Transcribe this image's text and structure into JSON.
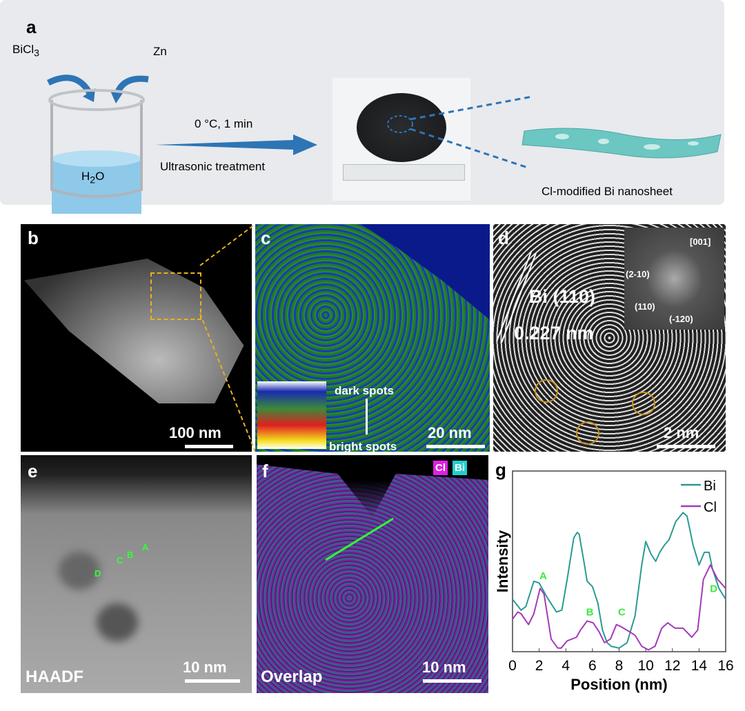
{
  "panel_a": {
    "label": "a",
    "reagent1": "BiCl",
    "reagent1_sub": "3",
    "reagent2": "Zn",
    "solvent": "H",
    "solvent_sub": "2",
    "solvent_tail": "O",
    "condition": "0 °C, 1 min",
    "process": "Ultrasonic treatment",
    "product": "Cl-modified Bi nanosheet"
  },
  "panel_b": {
    "label": "b",
    "scale": "100 nm"
  },
  "panel_c": {
    "label": "c",
    "scale": "20 nm",
    "legend_top": "dark spots",
    "legend_bottom": "bright spots"
  },
  "panel_d": {
    "label": "d",
    "plane": "Bi (110)",
    "spacing": "0.227 nm",
    "scale": "2 nm",
    "zone_axis": "[001]",
    "spots": [
      "(2-10)",
      "(110)",
      "(-120)"
    ]
  },
  "panel_e": {
    "label": "e",
    "mode": "HAADF",
    "scale": "10 nm",
    "points": [
      "A",
      "B",
      "C",
      "D"
    ]
  },
  "panel_f": {
    "label": "f",
    "mode": "Overlap",
    "scale": "10 nm",
    "legend": [
      "Cl",
      "Bi"
    ]
  },
  "chart_data": {
    "label": "g",
    "type": "line",
    "xlabel": "Position (nm)",
    "ylabel": "Intensity",
    "xlim": [
      0,
      16
    ],
    "ylim": [
      0,
      100
    ],
    "xticks": [
      0,
      2,
      4,
      6,
      8,
      10,
      12,
      14,
      16
    ],
    "legend_position": "top-right",
    "series": [
      {
        "name": "Bi",
        "color": "#2a9a94",
        "points": [
          [
            0,
            29
          ],
          [
            0.64,
            23
          ],
          [
            1,
            25
          ],
          [
            1.6,
            39
          ],
          [
            2,
            38
          ],
          [
            2.6,
            30
          ],
          [
            3.3,
            22
          ],
          [
            3.7,
            23
          ],
          [
            4.1,
            40
          ],
          [
            4.6,
            63
          ],
          [
            4.85,
            66
          ],
          [
            5,
            65
          ],
          [
            5.4,
            48
          ],
          [
            5.6,
            39
          ],
          [
            6,
            36
          ],
          [
            6.4,
            27
          ],
          [
            6.75,
            12
          ],
          [
            7.1,
            5
          ],
          [
            7.4,
            3
          ],
          [
            8,
            2
          ],
          [
            8.6,
            5
          ],
          [
            9.2,
            20
          ],
          [
            9.7,
            48
          ],
          [
            10,
            61
          ],
          [
            10.4,
            54
          ],
          [
            10.75,
            50
          ],
          [
            11.05,
            55
          ],
          [
            11.4,
            59
          ],
          [
            11.75,
            62
          ],
          [
            12.25,
            72
          ],
          [
            12.8,
            77
          ],
          [
            13.1,
            75
          ],
          [
            13.55,
            59
          ],
          [
            14,
            48
          ],
          [
            14.4,
            55
          ],
          [
            14.75,
            55
          ],
          [
            15,
            46
          ],
          [
            15.5,
            35
          ],
          [
            16,
            29
          ]
        ]
      },
      {
        "name": "Cl",
        "color": "#a43ab8",
        "points": [
          [
            0,
            18
          ],
          [
            0.4,
            22
          ],
          [
            0.64,
            21
          ],
          [
            1.2,
            15
          ],
          [
            1.6,
            21
          ],
          [
            2.07,
            35
          ],
          [
            2.36,
            32
          ],
          [
            2.9,
            7
          ],
          [
            3.4,
            2
          ],
          [
            3.65,
            2
          ],
          [
            4.1,
            6
          ],
          [
            4.8,
            8
          ],
          [
            5.1,
            12
          ],
          [
            5.6,
            17
          ],
          [
            6.05,
            16
          ],
          [
            6.5,
            11
          ],
          [
            6.9,
            5
          ],
          [
            7.35,
            7
          ],
          [
            7.8,
            15
          ],
          [
            8.1,
            14
          ],
          [
            8.8,
            11
          ],
          [
            9.2,
            9
          ],
          [
            9.7,
            3
          ],
          [
            10.2,
            1
          ],
          [
            10.7,
            3
          ],
          [
            11.2,
            13
          ],
          [
            11.65,
            16
          ],
          [
            12.2,
            13
          ],
          [
            12.8,
            13
          ],
          [
            13.45,
            8
          ],
          [
            13.9,
            12
          ],
          [
            14.33,
            40
          ],
          [
            14.85,
            48
          ],
          [
            15.4,
            40
          ],
          [
            16,
            35
          ]
        ]
      }
    ],
    "annotations": [
      {
        "text": "A",
        "x": 2.3,
        "y": 40
      },
      {
        "text": "B",
        "x": 5.8,
        "y": 20
      },
      {
        "text": "C",
        "x": 8.2,
        "y": 20
      },
      {
        "text": "D",
        "x": 15.1,
        "y": 33
      }
    ]
  }
}
